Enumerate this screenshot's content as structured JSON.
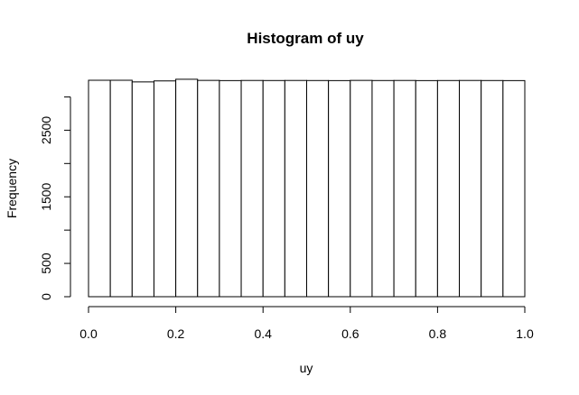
{
  "chart_data": {
    "type": "bar",
    "title": "Histogram of uy",
    "xlabel": "uy",
    "ylabel": "Frequency",
    "bins": [
      [
        0.0,
        0.05
      ],
      [
        0.05,
        0.1
      ],
      [
        0.1,
        0.15
      ],
      [
        0.15,
        0.2
      ],
      [
        0.2,
        0.25
      ],
      [
        0.25,
        0.3
      ],
      [
        0.3,
        0.35
      ],
      [
        0.35,
        0.4
      ],
      [
        0.4,
        0.45
      ],
      [
        0.45,
        0.5
      ],
      [
        0.5,
        0.55
      ],
      [
        0.55,
        0.6
      ],
      [
        0.6,
        0.65
      ],
      [
        0.65,
        0.7
      ],
      [
        0.7,
        0.75
      ],
      [
        0.75,
        0.8
      ],
      [
        0.8,
        0.85
      ],
      [
        0.85,
        0.9
      ],
      [
        0.9,
        0.95
      ],
      [
        0.95,
        1.0
      ]
    ],
    "values": [
      3250,
      3250,
      3225,
      3240,
      3265,
      3248,
      3245,
      3247,
      3246,
      3247,
      3246,
      3245,
      3248,
      3246,
      3247,
      3245,
      3246,
      3247,
      3246,
      3245
    ],
    "xlim": [
      0.0,
      1.0
    ],
    "ylim": [
      0,
      3250
    ],
    "x_ticks": [
      0.0,
      0.2,
      0.4,
      0.6,
      0.8,
      1.0
    ],
    "x_tick_labels": [
      "0.0",
      "0.2",
      "0.4",
      "0.6",
      "0.8",
      "1.0"
    ],
    "y_ticks": [
      0,
      500,
      1000,
      1500,
      2000,
      2500,
      3000
    ],
    "y_tick_labels": [
      "0",
      "500",
      "",
      "1500",
      "",
      "2500",
      ""
    ],
    "grid": false
  }
}
